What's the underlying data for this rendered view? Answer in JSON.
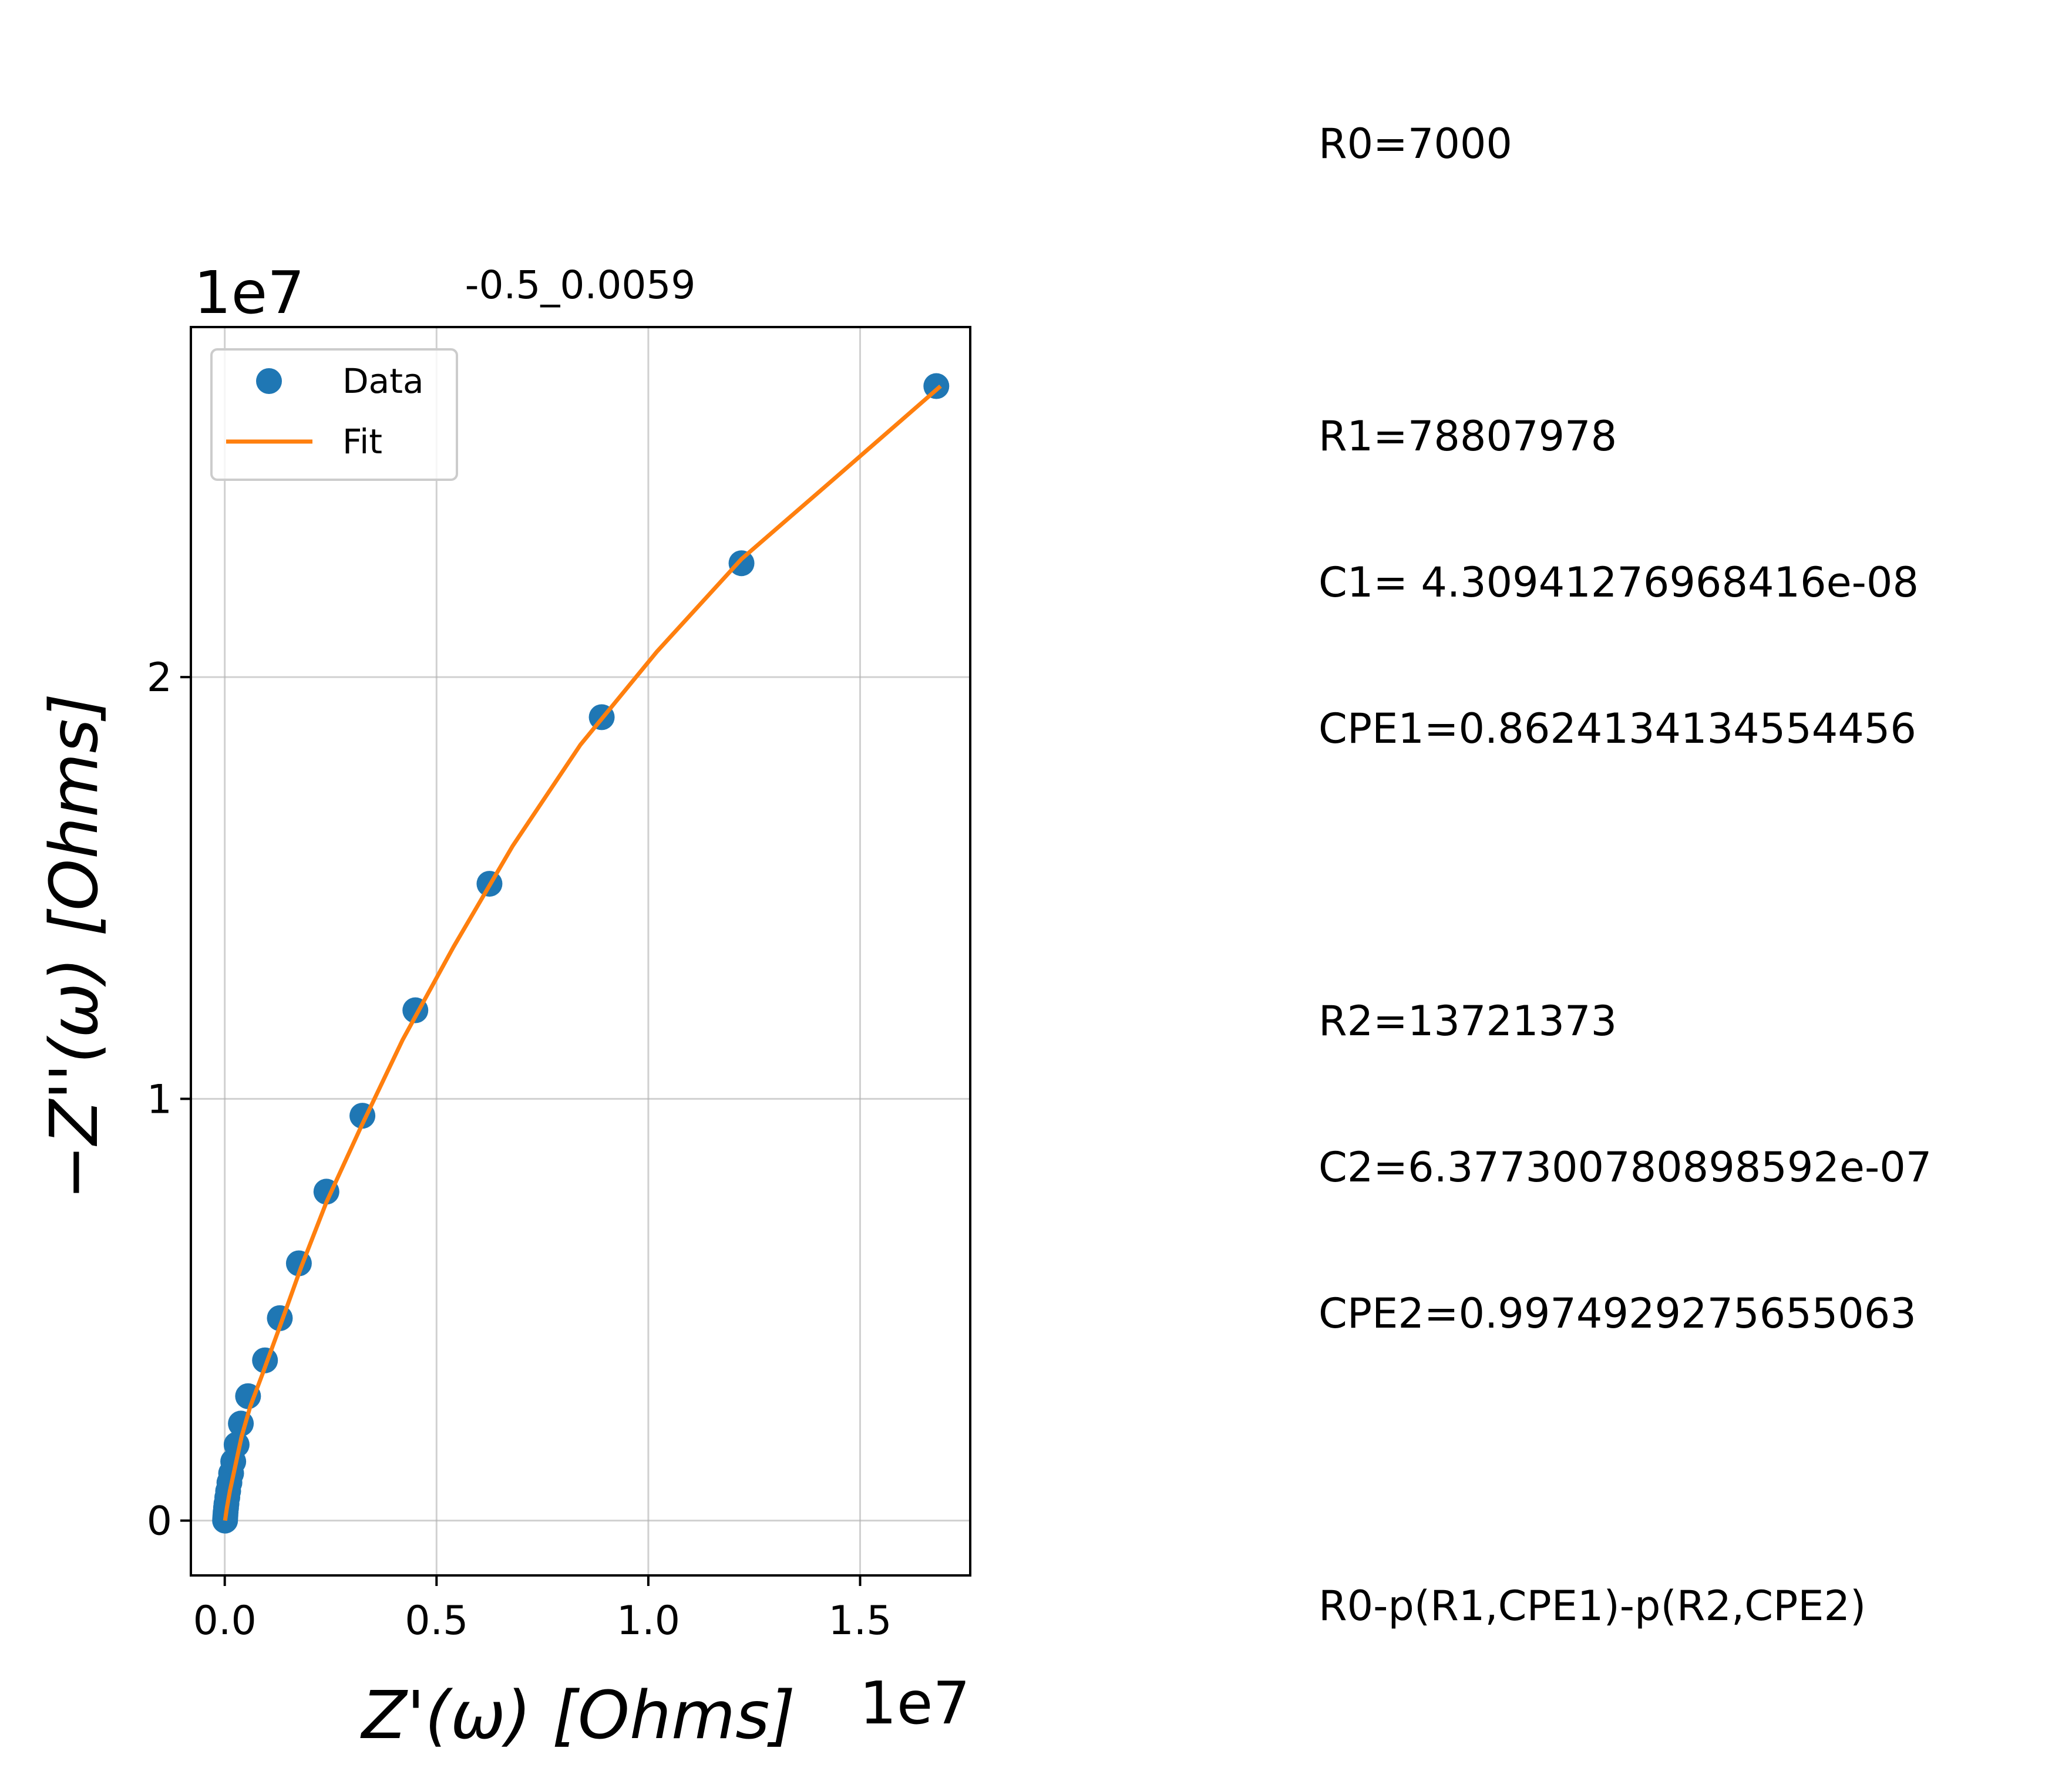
{
  "chart_data": {
    "type": "scatter",
    "title": "-0.5_0.0059",
    "xlabel": "Z'(ω) [Ohms]",
    "ylabel": "−Z''(ω) [Ohms]",
    "x_offset_label": "1e7",
    "y_offset_label": "1e7",
    "xlim": [
      -0.08,
      1.76
    ],
    "ylim": [
      -0.13,
      2.83
    ],
    "xticks": [
      0.0,
      0.5,
      1.0,
      1.5
    ],
    "xtick_labels": [
      "0.0",
      "0.5",
      "1.0",
      "1.5"
    ],
    "yticks": [
      0,
      1,
      2
    ],
    "ytick_labels": [
      "0",
      "1",
      "2"
    ],
    "grid": true,
    "legend_position": "upper-left",
    "series": [
      {
        "name": "Data",
        "kind": "markers",
        "color": "#1f77b4",
        "points": [
          [
            0.0007,
            0.0
          ],
          [
            0.001,
            0.005
          ],
          [
            0.0015,
            0.012
          ],
          [
            0.002,
            0.02
          ],
          [
            0.003,
            0.03
          ],
          [
            0.004,
            0.04
          ],
          [
            0.006,
            0.055
          ],
          [
            0.008,
            0.07
          ],
          [
            0.011,
            0.09
          ],
          [
            0.015,
            0.112
          ],
          [
            0.02,
            0.14
          ],
          [
            0.028,
            0.18
          ],
          [
            0.038,
            0.23
          ],
          [
            0.055,
            0.295
          ],
          [
            0.095,
            0.38
          ],
          [
            0.13,
            0.48
          ],
          [
            0.175,
            0.61
          ],
          [
            0.24,
            0.78
          ],
          [
            0.325,
            0.96
          ],
          [
            0.45,
            1.21
          ],
          [
            0.625,
            1.51
          ],
          [
            0.89,
            1.905
          ],
          [
            1.22,
            2.27
          ],
          [
            1.68,
            2.69
          ]
        ]
      },
      {
        "name": "Fit",
        "kind": "line",
        "color": "#ff7f0e",
        "points": [
          [
            0.0007,
            0.0
          ],
          [
            0.005,
            0.03
          ],
          [
            0.012,
            0.07
          ],
          [
            0.025,
            0.13
          ],
          [
            0.04,
            0.2
          ],
          [
            0.06,
            0.27
          ],
          [
            0.09,
            0.35
          ],
          [
            0.13,
            0.46
          ],
          [
            0.18,
            0.6
          ],
          [
            0.24,
            0.755
          ],
          [
            0.32,
            0.93
          ],
          [
            0.42,
            1.14
          ],
          [
            0.54,
            1.36
          ],
          [
            0.68,
            1.6
          ],
          [
            0.84,
            1.84
          ],
          [
            1.02,
            2.06
          ],
          [
            1.22,
            2.28
          ],
          [
            1.45,
            2.48
          ],
          [
            1.69,
            2.69
          ]
        ]
      }
    ]
  },
  "params_text": [
    "R0=7000",
    "",
    "R1=78807978",
    "C1= 4.30941276968416e-08",
    "CPE1=0.8624134134554456",
    "",
    "R2=13721373",
    "C2=6.377300780898592e-07",
    "CPE2=0.9974929275655063",
    "",
    "R0-p(R1,CPE1)-p(R2,CPE2)"
  ]
}
